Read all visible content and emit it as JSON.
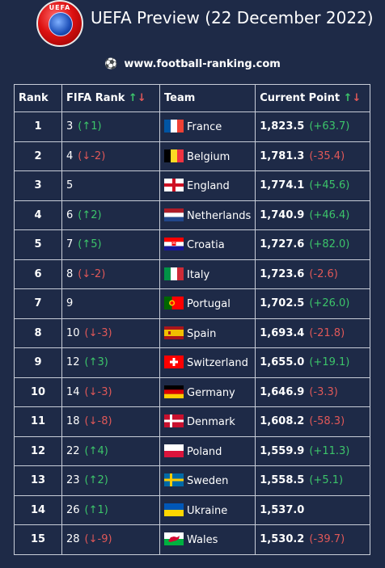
{
  "header": {
    "title": "UEFA Preview (22 December 2022)",
    "logo_text": "UEFA",
    "site": "www.football-ranking.com"
  },
  "table": {
    "columns": {
      "rank": "Rank",
      "fifa": "FIFA Rank",
      "team": "Team",
      "points": "Current Point"
    },
    "sort_arrows": {
      "up": "↑",
      "down": "↓"
    },
    "rows": [
      {
        "rank": "1",
        "fifa": "3",
        "fifa_change": "(↑1)",
        "dir": "up",
        "team": "France",
        "flag": "france",
        "points": "1,823.5",
        "points_change": "(+63.7)",
        "pdir": "up"
      },
      {
        "rank": "2",
        "fifa": "4",
        "fifa_change": "(↓-2)",
        "dir": "down",
        "team": "Belgium",
        "flag": "belgium",
        "points": "1,781.3",
        "points_change": "(-35.4)",
        "pdir": "down"
      },
      {
        "rank": "3",
        "fifa": "5",
        "fifa_change": "",
        "dir": "",
        "team": "England",
        "flag": "england",
        "points": "1,774.1",
        "points_change": "(+45.6)",
        "pdir": "up"
      },
      {
        "rank": "4",
        "fifa": "6",
        "fifa_change": "(↑2)",
        "dir": "up",
        "team": "Netherlands",
        "flag": "netherlands",
        "points": "1,740.9",
        "points_change": "(+46.4)",
        "pdir": "up"
      },
      {
        "rank": "5",
        "fifa": "7",
        "fifa_change": "(↑5)",
        "dir": "up",
        "team": "Croatia",
        "flag": "croatia",
        "points": "1,727.6",
        "points_change": "(+82.0)",
        "pdir": "up"
      },
      {
        "rank": "6",
        "fifa": "8",
        "fifa_change": "(↓-2)",
        "dir": "down",
        "team": "Italy",
        "flag": "italy",
        "points": "1,723.6",
        "points_change": "(-2.6)",
        "pdir": "down"
      },
      {
        "rank": "7",
        "fifa": "9",
        "fifa_change": "",
        "dir": "",
        "team": "Portugal",
        "flag": "portugal",
        "points": "1,702.5",
        "points_change": "(+26.0)",
        "pdir": "up"
      },
      {
        "rank": "8",
        "fifa": "10",
        "fifa_change": "(↓-3)",
        "dir": "down",
        "team": "Spain",
        "flag": "spain",
        "points": "1,693.4",
        "points_change": "(-21.8)",
        "pdir": "down"
      },
      {
        "rank": "9",
        "fifa": "12",
        "fifa_change": "(↑3)",
        "dir": "up",
        "team": "Switzerland",
        "flag": "switzerland",
        "points": "1,655.0",
        "points_change": "(+19.1)",
        "pdir": "up"
      },
      {
        "rank": "10",
        "fifa": "14",
        "fifa_change": "(↓-3)",
        "dir": "down",
        "team": "Germany",
        "flag": "germany",
        "points": "1,646.9",
        "points_change": "(-3.3)",
        "pdir": "down"
      },
      {
        "rank": "11",
        "fifa": "18",
        "fifa_change": "(↓-8)",
        "dir": "down",
        "team": "Denmark",
        "flag": "denmark",
        "points": "1,608.2",
        "points_change": "(-58.3)",
        "pdir": "down"
      },
      {
        "rank": "12",
        "fifa": "22",
        "fifa_change": "(↑4)",
        "dir": "up",
        "team": "Poland",
        "flag": "poland",
        "points": "1,559.9",
        "points_change": "(+11.3)",
        "pdir": "up"
      },
      {
        "rank": "13",
        "fifa": "23",
        "fifa_change": "(↑2)",
        "dir": "up",
        "team": "Sweden",
        "flag": "sweden",
        "points": "1,558.5",
        "points_change": "(+5.1)",
        "pdir": "up"
      },
      {
        "rank": "14",
        "fifa": "26",
        "fifa_change": "(↑1)",
        "dir": "up",
        "team": "Ukraine",
        "flag": "ukraine",
        "points": "1,537.0",
        "points_change": "",
        "pdir": ""
      },
      {
        "rank": "15",
        "fifa": "28",
        "fifa_change": "(↓-9)",
        "dir": "down",
        "team": "Wales",
        "flag": "wales",
        "points": "1,530.2",
        "points_change": "(-39.7)",
        "pdir": "down"
      }
    ]
  },
  "colors": {
    "background": "#1e2a47",
    "up": "#3cc46a",
    "down": "#e05858",
    "border": "#c8cdd8"
  }
}
